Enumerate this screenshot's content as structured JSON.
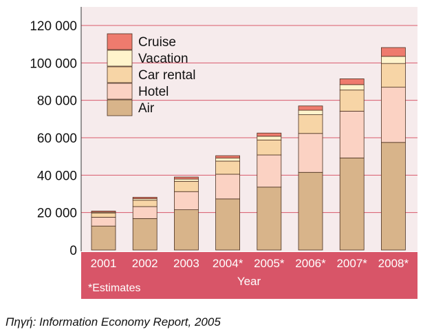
{
  "chart_data": {
    "type": "bar",
    "stacked": true,
    "categories": [
      "2001",
      "2002",
      "2003",
      "2004*",
      "2005*",
      "2006*",
      "2007*",
      "2008*"
    ],
    "series": [
      {
        "name": "Air",
        "color": "#d8b48a",
        "values": [
          12800,
          16800,
          21500,
          27300,
          33600,
          41500,
          49200,
          57500
        ]
      },
      {
        "name": "Hotel",
        "color": "#fbd2c3",
        "values": [
          4700,
          6400,
          9700,
          13200,
          17200,
          20800,
          25000,
          29500
        ]
      },
      {
        "name": "Car rental",
        "color": "#f7d5a6",
        "values": [
          2300,
          3400,
          5500,
          7000,
          8000,
          10000,
          11300,
          12700
        ]
      },
      {
        "name": "Vacation",
        "color": "#fff4cc",
        "values": [
          400,
          800,
          1200,
          1600,
          2000,
          2400,
          2900,
          3800
        ]
      },
      {
        "name": "Cruise",
        "color": "#ee7b6e",
        "values": [
          600,
          800,
          1100,
          1300,
          1700,
          2300,
          3100,
          4700
        ]
      }
    ],
    "xlabel": "Year",
    "ylabel": "",
    "ylim": [
      0,
      120000
    ],
    "yticks": [
      "0",
      "20 000",
      "40 000",
      "60 000",
      "80 000",
      "100 000",
      "120 000"
    ],
    "legend_position": "top-left",
    "footnote": "*Estimates",
    "grid": true,
    "colors": {
      "plot_background": "#f6ebec",
      "gridline": "#d9586a",
      "axis_band": "#d85568"
    }
  },
  "source_text": "Πηγή:  Information Economy Report, 2005"
}
